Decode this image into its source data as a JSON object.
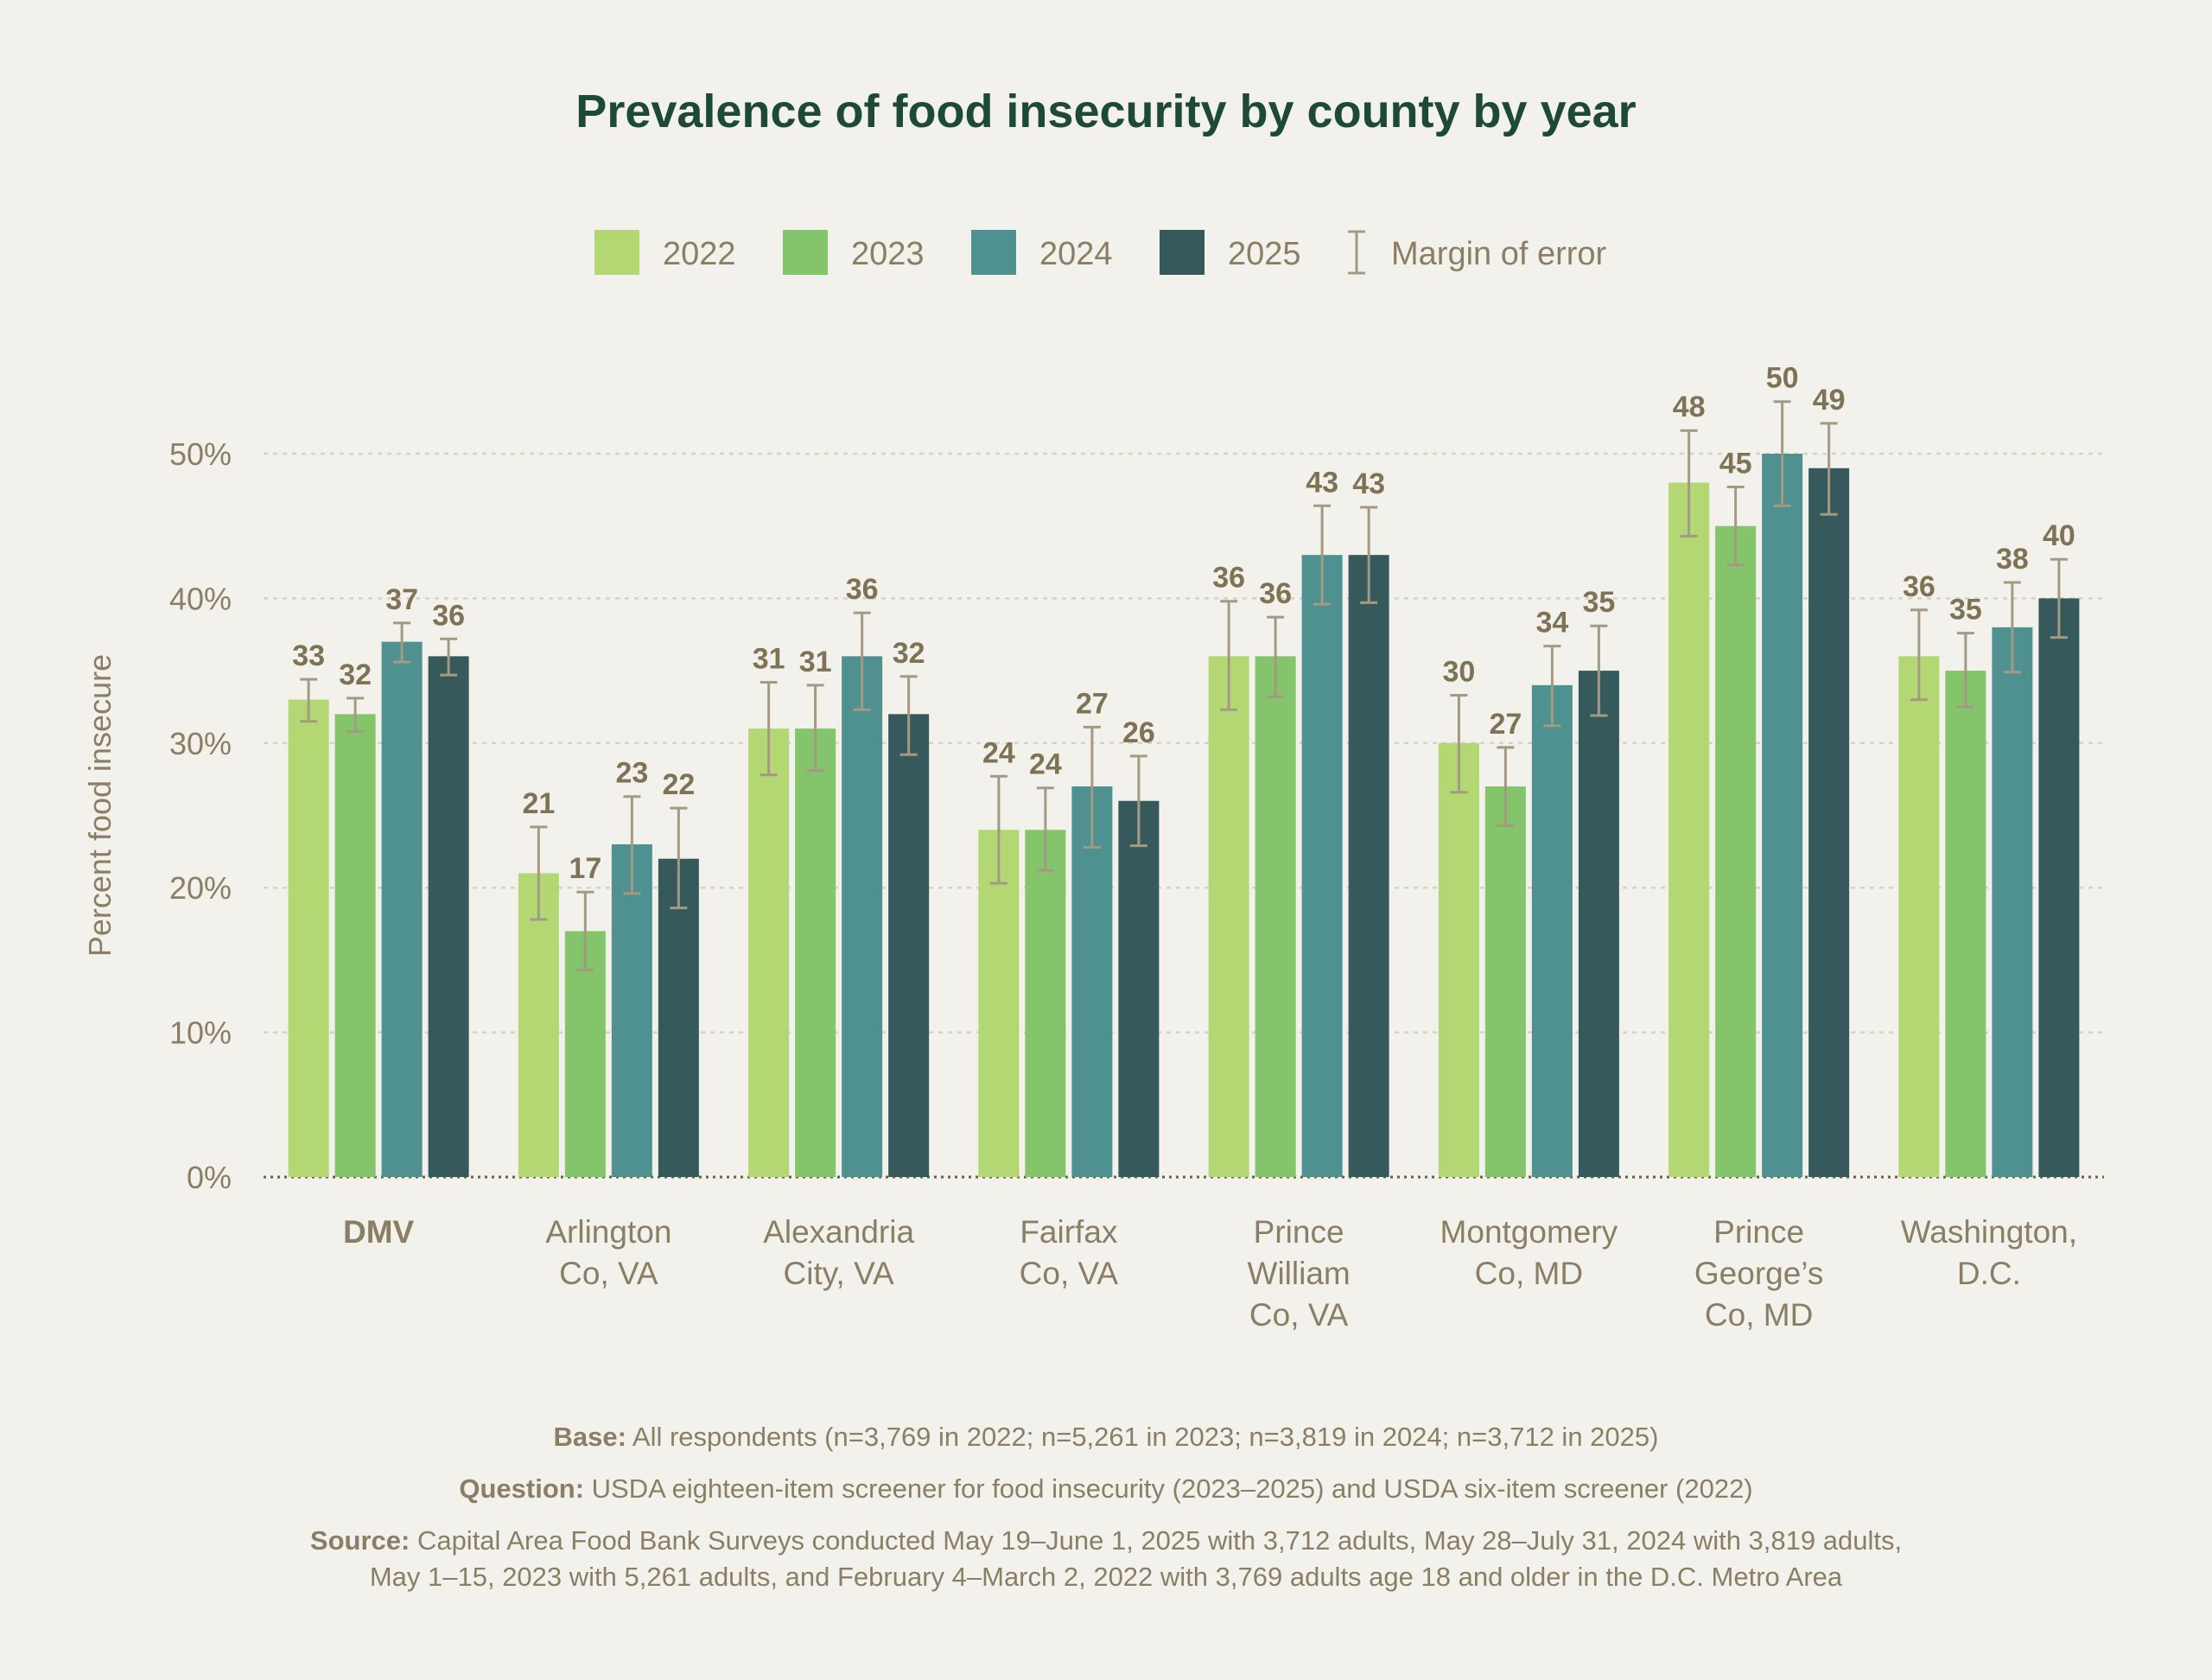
{
  "chart_data": {
    "type": "bar",
    "title": "Prevalence of food insecurity by county by year",
    "ylabel": "Percent food insecure",
    "xlabel": "",
    "ylim": [
      0,
      50
    ],
    "yticks": [
      "0%",
      "10%",
      "20%",
      "30%",
      "40%",
      "50%"
    ],
    "grid": true,
    "legend_position": "top",
    "error_bar_label": "Margin of error",
    "categories": [
      [
        "DMV"
      ],
      [
        "Arlington",
        "Co, VA"
      ],
      [
        "Alexandria",
        "City, VA"
      ],
      [
        "Fairfax",
        "Co, VA"
      ],
      [
        "Prince",
        "William",
        "Co, VA"
      ],
      [
        "Montgomery",
        "Co, MD"
      ],
      [
        "Prince",
        "George’s",
        "Co, MD"
      ],
      [
        "Washington,",
        "D.C."
      ]
    ],
    "series": [
      {
        "name": "2022",
        "color": "#b3d773",
        "values": [
          33,
          21,
          31,
          24,
          36,
          30,
          48,
          36
        ],
        "err_low": [
          31.5,
          17.8,
          27.8,
          20.3,
          32.3,
          26.6,
          44.3,
          33.0
        ],
        "err_high": [
          34.4,
          24.2,
          34.2,
          27.7,
          39.8,
          33.3,
          51.6,
          39.2
        ]
      },
      {
        "name": "2023",
        "color": "#84c46a",
        "values": [
          32,
          17,
          31,
          24,
          36,
          27,
          45,
          35
        ],
        "err_low": [
          30.8,
          14.3,
          28.1,
          21.2,
          33.2,
          24.3,
          42.3,
          32.5
        ],
        "err_high": [
          33.1,
          19.7,
          34.0,
          26.9,
          38.7,
          29.7,
          47.7,
          37.6
        ]
      },
      {
        "name": "2024",
        "color": "#4e9190",
        "values": [
          37,
          23,
          36,
          27,
          43,
          34,
          50,
          38
        ],
        "err_low": [
          35.6,
          19.6,
          32.3,
          22.8,
          39.6,
          31.2,
          46.4,
          34.9
        ],
        "err_high": [
          38.3,
          26.3,
          39.0,
          31.1,
          46.4,
          36.7,
          53.6,
          41.1
        ]
      },
      {
        "name": "2025",
        "color": "#365a5b",
        "values": [
          36,
          22,
          32,
          26,
          43,
          35,
          49,
          40
        ],
        "err_low": [
          34.7,
          18.6,
          29.2,
          22.9,
          39.7,
          31.9,
          45.8,
          37.3
        ],
        "err_high": [
          37.2,
          25.5,
          34.6,
          29.1,
          46.3,
          38.1,
          52.1,
          42.7
        ]
      }
    ]
  },
  "notes": {
    "base_label": "Base:",
    "base_text": " All respondents (n=3,769 in 2022; n=5,261 in 2023; n=3,819 in 2024; n=3,712 in 2025)",
    "question_label": "Question:",
    "question_text": " USDA eighteen-item screener for food insecurity (2023–2025) and USDA six-item screener (2022)",
    "source_label": "Source:",
    "source_text": " Capital Area Food Bank Surveys conducted May 19–June 1, 2025 with 3,712 adults, May 28–July 31, 2024 with 3,819 adults,",
    "source_text_2": "May 1–15, 2023 with 5,261 adults, and February 4–March 2, 2022 with 3,769 adults age 18 and older in the D.C. Metro Area"
  },
  "colors": {
    "title": "#1d4a36",
    "axis_text": "#8a7f64",
    "error_bar": "#a39a82",
    "grid": "#d6d2c8"
  }
}
